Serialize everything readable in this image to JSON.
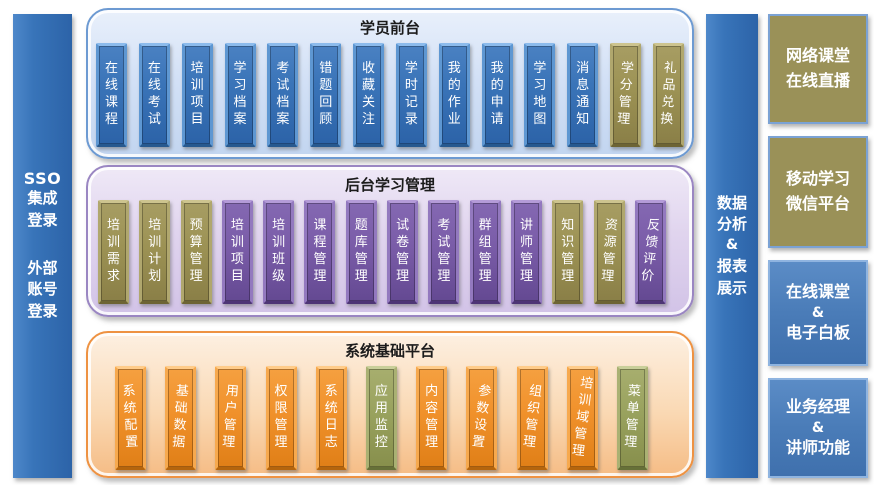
{
  "left_bar": {
    "sso": "SSO",
    "group1": "集成登录",
    "group2": "外部账号登录"
  },
  "right_bar": {
    "line1": "数据分析",
    "amp": "&",
    "line2": "报表展示"
  },
  "panels": {
    "student": {
      "title": "学员前台",
      "cards": [
        {
          "label": "在线课程",
          "color": "blue"
        },
        {
          "label": "在线考试",
          "color": "blue"
        },
        {
          "label": "培训项目",
          "color": "blue"
        },
        {
          "label": "学习档案",
          "color": "blue"
        },
        {
          "label": "考试档案",
          "color": "blue"
        },
        {
          "label": "错题回顾",
          "color": "blue"
        },
        {
          "label": "收藏关注",
          "color": "blue"
        },
        {
          "label": "学时记录",
          "color": "blue"
        },
        {
          "label": "我的作业",
          "color": "blue"
        },
        {
          "label": "我的申请",
          "color": "blue"
        },
        {
          "label": "学习地图",
          "color": "blue"
        },
        {
          "label": "消息通知",
          "color": "blue"
        },
        {
          "label": "学分管理",
          "color": "olive"
        },
        {
          "label": "礼品兑换",
          "color": "olive"
        }
      ]
    },
    "admin": {
      "title": "后台学习管理",
      "cards": [
        {
          "label": "培训需求",
          "color": "olive"
        },
        {
          "label": "培训计划",
          "color": "olive"
        },
        {
          "label": "预算管理",
          "color": "olive"
        },
        {
          "label": "培训项目",
          "color": "purple"
        },
        {
          "label": "培训班级",
          "color": "purple"
        },
        {
          "label": "课程管理",
          "color": "purple"
        },
        {
          "label": "题库管理",
          "color": "purple"
        },
        {
          "label": "试卷管理",
          "color": "purple"
        },
        {
          "label": "考试管理",
          "color": "purple"
        },
        {
          "label": "群组管理",
          "color": "purple"
        },
        {
          "label": "讲师管理",
          "color": "purple"
        },
        {
          "label": "知识管理",
          "color": "olive"
        },
        {
          "label": "资源管理",
          "color": "olive"
        },
        {
          "label": "反馈评价",
          "color": "purple"
        }
      ]
    },
    "system": {
      "title": "系统基础平台",
      "cards": [
        {
          "label": "系统配置",
          "color": "orange"
        },
        {
          "label": "基础数据",
          "color": "orange"
        },
        {
          "label": "用户管理",
          "color": "orange"
        },
        {
          "label": "权限管理",
          "color": "orange"
        },
        {
          "label": "系统日志",
          "color": "orange"
        },
        {
          "label": "应用监控",
          "color": "green"
        },
        {
          "label": "内容管理",
          "color": "orange"
        },
        {
          "label": "参数设置",
          "color": "orange"
        },
        {
          "label": "组织管理",
          "color": "orange"
        },
        {
          "label": "培训域管理",
          "color": "orange"
        },
        {
          "label": "菜单管理",
          "color": "green"
        }
      ]
    }
  },
  "right_boxes": [
    {
      "lines": [
        "网络课堂",
        "在线直播"
      ],
      "color": "olive"
    },
    {
      "lines": [
        "移动学习",
        "微信平台"
      ],
      "color": "olive"
    },
    {
      "lines": [
        "在线课堂",
        "&",
        "电子白板"
      ],
      "color": "blue"
    },
    {
      "lines": [
        "业务经理",
        "&",
        "讲师功能"
      ],
      "color": "blue"
    }
  ],
  "colors": {
    "bar_blue": "#3874b9",
    "card_blue": "#3a74b8",
    "card_olive": "#9c9254",
    "card_purple": "#7a5ca8",
    "card_orange": "#f0912b",
    "card_green": "#99a25e",
    "panel_student_bg": "#d3e1f6",
    "panel_admin_bg": "#e0d4ee",
    "panel_system_bg": "#fad9b4",
    "box_olive": "#9a9158",
    "box_blue": "#4a7cb8"
  }
}
